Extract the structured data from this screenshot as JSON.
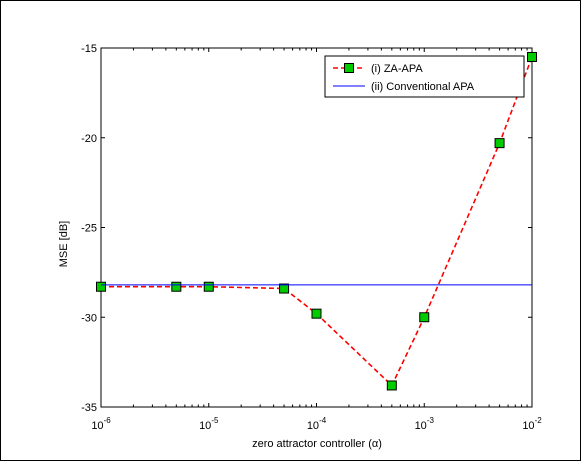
{
  "chart_data": {
    "type": "line",
    "title": "",
    "xlabel": "zero attractor controller (α)",
    "ylabel": "MSE [dB]",
    "xscale": "log",
    "xlim": [
      1e-06,
      0.01
    ],
    "ylim": [
      -35,
      -15
    ],
    "x_ticks": [
      {
        "value": 1e-06,
        "base": "10",
        "exp": "-6"
      },
      {
        "value": 1e-05,
        "base": "10",
        "exp": "-5"
      },
      {
        "value": 0.0001,
        "base": "10",
        "exp": "-4"
      },
      {
        "value": 0.001,
        "base": "10",
        "exp": "-3"
      },
      {
        "value": 0.01,
        "base": "10",
        "exp": "-2"
      }
    ],
    "y_ticks": [
      {
        "value": -15,
        "label": "-15"
      },
      {
        "value": -20,
        "label": "-20"
      },
      {
        "value": -25,
        "label": "-25"
      },
      {
        "value": -30,
        "label": "-30"
      },
      {
        "value": -35,
        "label": "-35"
      }
    ],
    "grid": false,
    "legend_position": "top-right",
    "series": [
      {
        "name": "(i) ZA-APA",
        "color": "#ff0000",
        "marker_color": "#00cc00",
        "line_style": "dashed",
        "marker": "square",
        "x": [
          1e-06,
          5e-06,
          1e-05,
          5e-05,
          0.0001,
          0.0005,
          0.001,
          0.005,
          0.01
        ],
        "y": [
          -28.3,
          -28.3,
          -28.3,
          -28.4,
          -29.8,
          -33.8,
          -30.0,
          -20.3,
          -15.5
        ]
      },
      {
        "name": "(ii) Conventional APA",
        "color": "#0000ff",
        "line_style": "solid",
        "marker": "none",
        "x": [
          1e-06,
          0.01
        ],
        "y": [
          -28.2,
          -28.2
        ]
      }
    ]
  }
}
